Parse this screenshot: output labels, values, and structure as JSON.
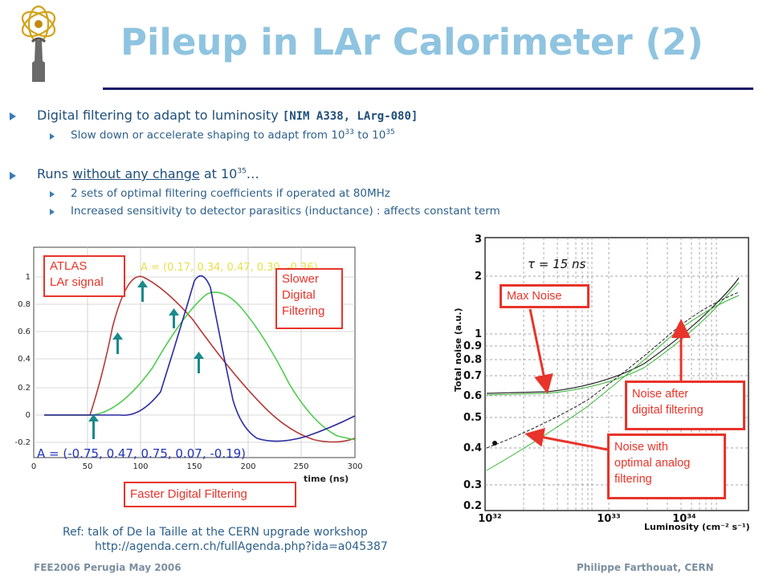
{
  "slide": {
    "title": "Pileup in LAr Calorimeter (2)",
    "bullets": [
      {
        "text": "Digital filtering to adapt to luminosity ",
        "ref": "[NIM A338, LArg-080]",
        "subs": [
          {
            "pre": "Slow down or accelerate shaping to adapt from 10",
            "sup1": "33",
            "mid": " to 10",
            "sup2": "35"
          }
        ]
      },
      {
        "pre": "Runs ",
        "underline": "without any change",
        "mid": " at 10",
        "sup": "35",
        "post": "…",
        "subs": [
          {
            "text": "2 sets of optimal filtering coefficients if operated at 80MHz"
          },
          {
            "text": "Increased sensitivity to detector parasitics (inductance) : affects constant term"
          }
        ]
      }
    ],
    "left_plot": {
      "ylabels": [
        "1",
        "0.8",
        "0.6",
        "0.4",
        "0.2",
        "0",
        "-0.2"
      ],
      "xlabels": [
        "0",
        "50",
        "100",
        "150",
        "200",
        "250",
        "300"
      ],
      "xaxis_label": "time (ns)",
      "coeff_a": "A = (-0.75, 0.47, 0.75, 0.07, -0.19)",
      "coeff_b": "A = (0.17, 0.34, 0.47, 0.30, -0.36)"
    },
    "right_plot": {
      "tau_label": "τ = 15 ns",
      "ylabel": "Total noise (a.u.)",
      "xlabel": "Luminosity (cm⁻² s⁻¹)",
      "yticks": [
        "3",
        "2",
        "1",
        "0.9",
        "0.8",
        "0.7",
        "0.6",
        "0.5",
        "0.4",
        "0.3",
        "0.2"
      ],
      "xticks": [
        "10³²",
        "10³³",
        "10³⁴"
      ]
    },
    "callouts": {
      "atlas_1": "ATLAS",
      "atlas_2": "LAr signal",
      "slower_1": "Slower",
      "slower_2": "Digital",
      "slower_3": "Filtering",
      "faster": "Faster Digital Filtering",
      "max_noise": "Max Noise",
      "after_1": "Noise after",
      "after_2": "digital filtering",
      "analog_1": "Noise with",
      "analog_2": "optimal analog",
      "analog_3": "filtering"
    },
    "reference": {
      "line1": "Ref: talk of De la Taille at the CERN upgrade workshop",
      "line2": "http://agenda.cern.ch/fullAgenda.php?ida=a045387"
    },
    "footer": {
      "left": "FEE2006 Perugia May 2006",
      "right": "Philippe Farthouat, CERN"
    },
    "colors": {
      "title": "#8fc4e0",
      "rule": "#16176b",
      "callout": "#e8342a",
      "arrow": "#1a8a8a"
    }
  }
}
